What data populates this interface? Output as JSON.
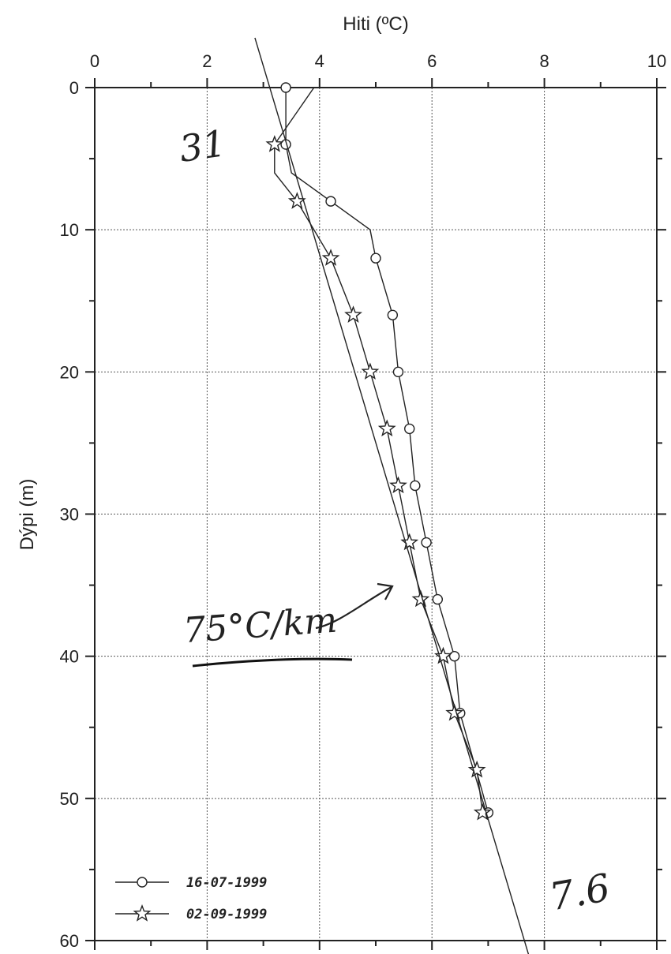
{
  "chart_data": {
    "type": "line",
    "title": "",
    "xlabel": "Hiti (ºC)",
    "ylabel": "Dýpi (m)",
    "xlim": [
      0,
      10
    ],
    "ylim": [
      0,
      60
    ],
    "y_inverted": true,
    "x_axis_position": "top",
    "x_ticks": [
      0,
      2,
      4,
      6,
      8,
      10
    ],
    "y_ticks": [
      0,
      10,
      20,
      30,
      40,
      50,
      60
    ],
    "grid": true,
    "legend_position": "bottom-left",
    "series": [
      {
        "name": "16-07-1999",
        "marker": "circle",
        "temperature": [
          3.4,
          3.4,
          3.5,
          4.2,
          4.9,
          5.0,
          5.3,
          5.4,
          5.6,
          5.7,
          5.9,
          6.1,
          6.4,
          6.5,
          7.0
        ],
        "depth": [
          0,
          4,
          6,
          8,
          10,
          12,
          16,
          20,
          24,
          28,
          32,
          36,
          40,
          44,
          51
        ],
        "marker_indices": [
          0,
          1,
          3,
          5,
          6,
          7,
          8,
          9,
          10,
          11,
          12,
          13,
          14
        ]
      },
      {
        "name": "02-09-1999",
        "marker": "star",
        "temperature": [
          3.9,
          3.2,
          3.2,
          3.6,
          4.2,
          4.6,
          4.9,
          5.2,
          5.4,
          5.6,
          5.8,
          6.2,
          6.4,
          6.8,
          6.9
        ],
        "depth": [
          0,
          4,
          6,
          8,
          12,
          16,
          20,
          24,
          28,
          32,
          36,
          40,
          44,
          48,
          51
        ],
        "marker_indices": [
          1,
          3,
          4,
          5,
          6,
          7,
          8,
          9,
          10,
          11,
          12,
          13,
          14
        ]
      }
    ],
    "fit_line": {
      "temperature": [
        2.85,
        7.72
      ],
      "depth": [
        -3.5,
        61
      ]
    },
    "annotations": [
      "31",
      "75°C/km",
      "7.6"
    ]
  }
}
